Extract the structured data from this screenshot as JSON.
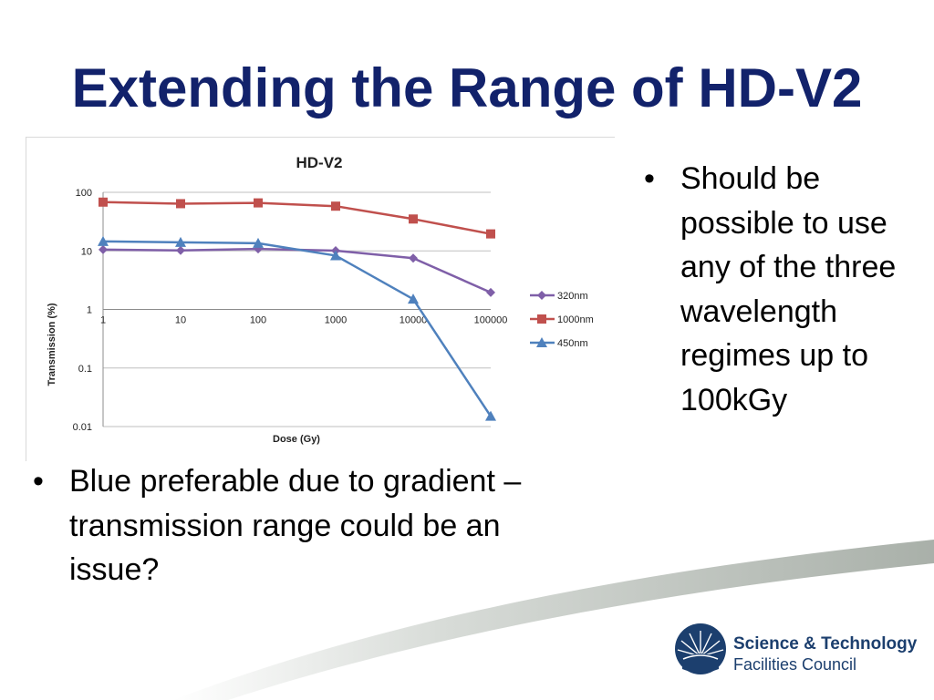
{
  "slide": {
    "title": "Extending the Range of HD-V2",
    "bullets_right": [
      "Should be possible to use any of the three wavelength regimes up to 100kGy"
    ],
    "bullets_bottom": [
      "Blue preferable due to gradient – transmission range could be an issue?"
    ],
    "logo": {
      "line1": "Science & Technology",
      "line2": "Facilities Council",
      "icon": "sunrise-emblem-icon"
    }
  },
  "colors": {
    "title": "#12226b",
    "series_320nm": "#7f5fa8",
    "series_1000nm": "#c0504d",
    "series_450nm": "#4f81bd",
    "logo": "#1c3f6e"
  },
  "chart_data": {
    "type": "line",
    "title": "HD-V2",
    "xlabel": "Dose (Gy)",
    "ylabel": "Transmission (%)",
    "x_scale": "log",
    "y_scale": "log",
    "x": [
      1,
      10,
      100,
      1000,
      10000,
      100000
    ],
    "x_tick_labels": [
      "1",
      "10",
      "100",
      "1000",
      "10000",
      "100000"
    ],
    "y_tick_labels": [
      "100",
      "10",
      "1",
      "0.1",
      "0.01"
    ],
    "ylim": [
      0.01,
      100
    ],
    "grid": true,
    "legend_position": "right",
    "series": [
      {
        "name": "320nm",
        "marker": "diamond",
        "values": [
          10.5,
          10.2,
          10.8,
          10.1,
          7.5,
          1.95
        ]
      },
      {
        "name": "1000nm",
        "marker": "square",
        "values": [
          68,
          64,
          66,
          58,
          35,
          19.5
        ]
      },
      {
        "name": "450nm",
        "marker": "triangle",
        "values": [
          14.5,
          14,
          13.5,
          8.3,
          1.5,
          0.015
        ]
      }
    ]
  }
}
